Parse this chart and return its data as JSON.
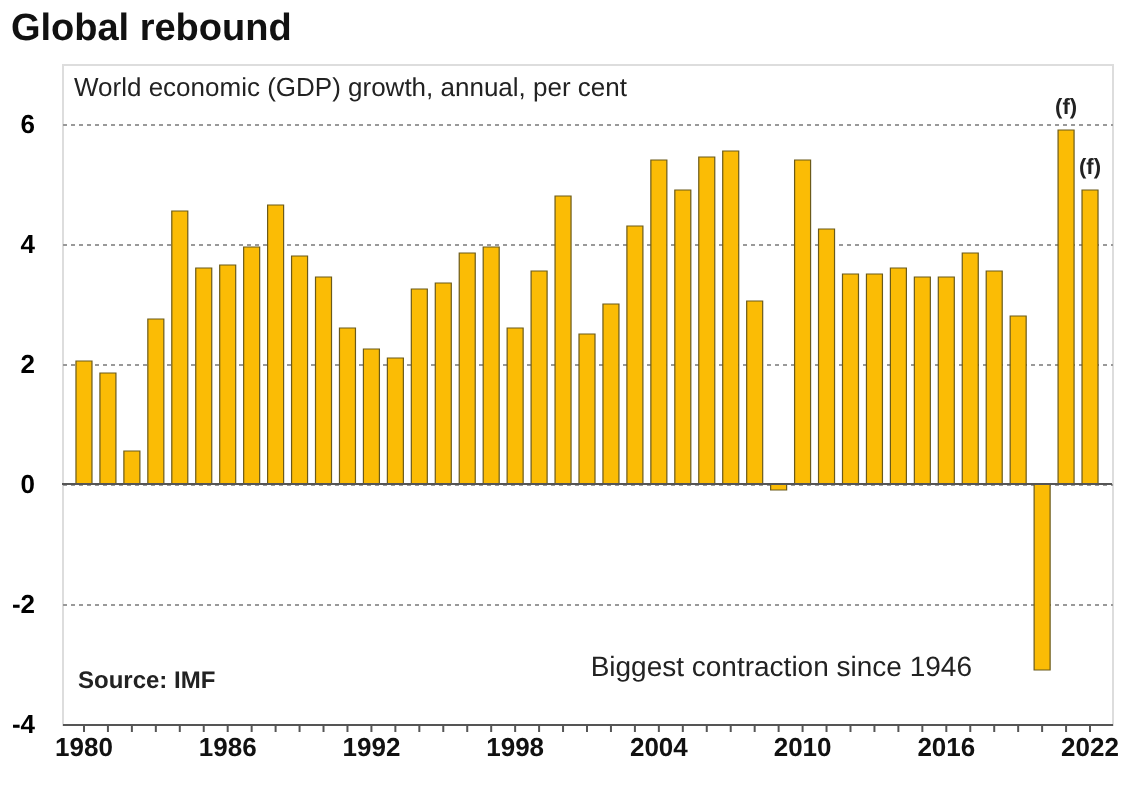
{
  "chart_data": {
    "type": "bar",
    "title": "Global rebound",
    "subtitle": "World economic (GDP) growth, annual, per cent",
    "x": [
      1980,
      1981,
      1982,
      1983,
      1984,
      1985,
      1986,
      1987,
      1988,
      1989,
      1990,
      1991,
      1992,
      1993,
      1994,
      1995,
      1996,
      1997,
      1998,
      1999,
      2000,
      2001,
      2002,
      2003,
      2004,
      2005,
      2006,
      2007,
      2008,
      2009,
      2010,
      2011,
      2012,
      2013,
      2014,
      2015,
      2016,
      2017,
      2018,
      2019,
      2020,
      2021,
      2022
    ],
    "values": [
      2.05,
      1.85,
      0.55,
      2.75,
      4.55,
      3.6,
      3.65,
      3.95,
      4.65,
      3.8,
      3.45,
      2.6,
      2.25,
      2.1,
      3.25,
      3.35,
      3.85,
      3.95,
      2.6,
      3.55,
      4.8,
      2.5,
      3.0,
      4.3,
      5.4,
      4.9,
      5.45,
      5.55,
      3.05,
      -0.1,
      5.4,
      4.25,
      3.5,
      3.5,
      3.6,
      3.45,
      3.45,
      3.85,
      3.55,
      2.8,
      -3.1,
      5.9,
      4.9
    ],
    "color": "#fbbc05",
    "xlim": [
      1979.5,
      2022.5
    ],
    "xticks": [
      1980,
      {
        "value": 1981,
        "label": null
      },
      {
        "value": 1982,
        "label": null
      },
      {
        "value": 1983,
        "label": null
      },
      {
        "value": 1984,
        "label": null
      },
      {
        "value": 1985,
        "label": null
      },
      1986,
      {
        "value": 1987,
        "label": null
      },
      {
        "value": 1988,
        "label": null
      },
      {
        "value": 1989,
        "label": null
      },
      {
        "value": 1990,
        "label": null
      },
      {
        "value": 1991,
        "label": null
      },
      1992,
      {
        "value": 1993,
        "label": null
      },
      {
        "value": 1994,
        "label": null
      },
      {
        "value": 1995,
        "label": null
      },
      {
        "value": 1996,
        "label": null
      },
      {
        "value": 1997,
        "label": null
      },
      1998,
      {
        "value": 1999,
        "label": null
      },
      {
        "value": 2000,
        "label": null
      },
      {
        "value": 2001,
        "label": null
      },
      {
        "value": 2002,
        "label": null
      },
      {
        "value": 2003,
        "label": null
      },
      2004,
      {
        "value": 2005,
        "label": null
      },
      {
        "value": 2006,
        "label": null
      },
      {
        "value": 2007,
        "label": null
      },
      {
        "value": 2008,
        "label": null
      },
      {
        "value": 2009,
        "label": null
      },
      2010,
      {
        "value": 2011,
        "label": null
      },
      {
        "value": 2012,
        "label": null
      },
      {
        "value": 2013,
        "label": null
      },
      {
        "value": 2014,
        "label": null
      },
      {
        "value": 2015,
        "label": null
      },
      2016,
      {
        "value": 2017,
        "label": null
      },
      {
        "value": 2018,
        "label": null
      },
      {
        "value": 2019,
        "label": null
      },
      {
        "value": 2020,
        "label": null
      },
      {
        "value": 2021,
        "label": null
      },
      2022
    ],
    "ylim": [
      -4,
      7
    ],
    "yticks": [
      -4,
      -2,
      0,
      2,
      4,
      6
    ],
    "grid": "y",
    "annotations": [
      {
        "text": "(f)",
        "x": 2021,
        "y": 5.9
      },
      {
        "text": "(f)",
        "x": 2022,
        "y": 4.9
      },
      "Source: IMF",
      "Biggest contraction since 1946"
    ]
  }
}
